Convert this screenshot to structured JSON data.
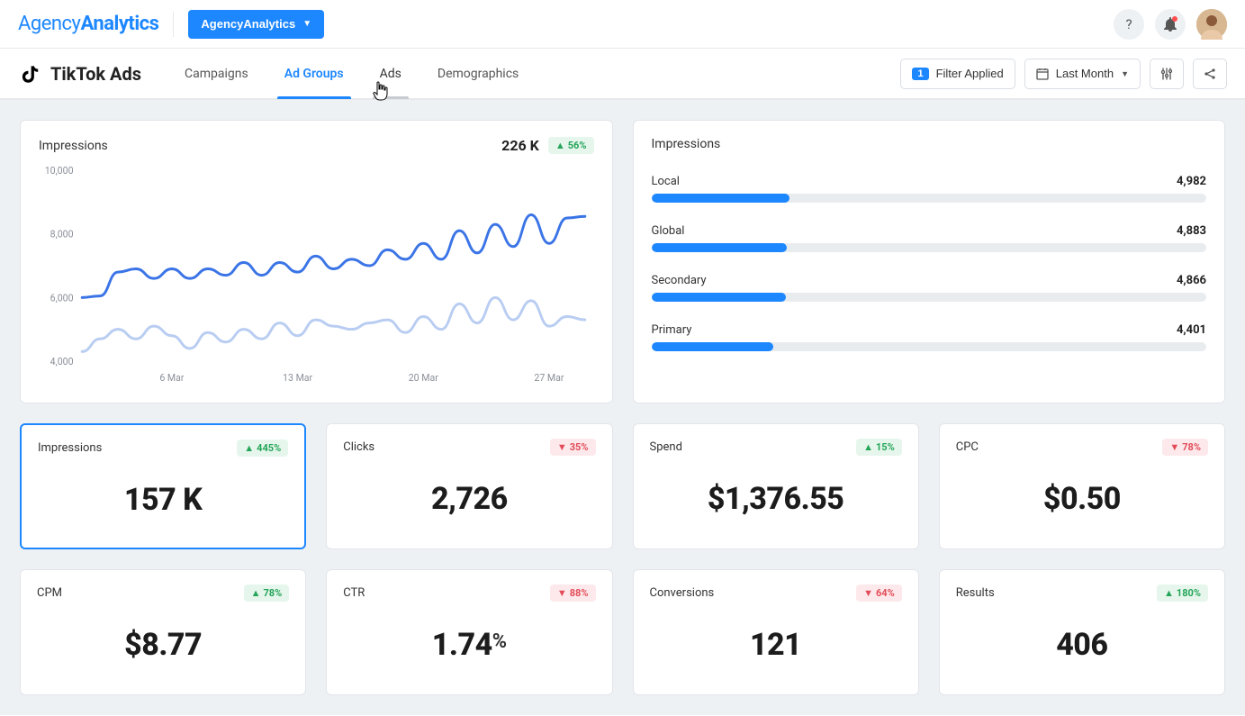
{
  "header": {
    "logo_light": "Agency",
    "logo_bold": "Analytics",
    "workspace_label": "AgencyAnalytics"
  },
  "subheader": {
    "page_title": "TikTok Ads",
    "tabs": {
      "campaigns": "Campaigns",
      "adgroups": "Ad Groups",
      "ads": "Ads",
      "demographics": "Demographics"
    },
    "filter_count": "1",
    "filter_label": "Filter Applied",
    "date_label": "Last Month"
  },
  "impressions_chart": {
    "title": "Impressions",
    "total": "226 K",
    "delta": "56%",
    "delta_dir": "up",
    "y_ticks": [
      "10,000",
      "8,000",
      "6,000",
      "4,000"
    ],
    "x_ticks": [
      "6 Mar",
      "13 Mar",
      "20 Mar",
      "27 Mar"
    ],
    "colors": {
      "series1": "#3b74e6",
      "series2": "#b9cdf2"
    },
    "series1": [
      6000,
      6050,
      6800,
      6900,
      6600,
      6900,
      6600,
      6900,
      6700,
      7100,
      6700,
      7100,
      6800,
      7300,
      6900,
      7200,
      7000,
      7500,
      7200,
      7700,
      7200,
      8100,
      7400,
      8300,
      7600,
      8600,
      7700,
      8500,
      8550
    ],
    "series2": [
      4300,
      4700,
      5000,
      4700,
      5100,
      4800,
      4400,
      4900,
      4600,
      5000,
      4700,
      5200,
      4800,
      5300,
      5100,
      5000,
      5200,
      5300,
      4900,
      5400,
      5000,
      5800,
      5200,
      6000,
      5300,
      5900,
      5100,
      5400,
      5300
    ],
    "ylim": [
      4000,
      10000
    ]
  },
  "impressions_bars": {
    "title": "Impressions",
    "max": 20000,
    "items": [
      {
        "name": "Local",
        "value_text": "4,982",
        "value": 4982
      },
      {
        "name": "Global",
        "value_text": "4,883",
        "value": 4883
      },
      {
        "name": "Secondary",
        "value_text": "4,866",
        "value": 4866
      },
      {
        "name": "Primary",
        "value_text": "4,401",
        "value": 4401
      }
    ]
  },
  "metrics": [
    {
      "key": "impressions",
      "label": "Impressions",
      "value": "157 K",
      "delta": "445%",
      "dir": "up",
      "selected": true
    },
    {
      "key": "clicks",
      "label": "Clicks",
      "value": "2,726",
      "delta": "35%",
      "dir": "down"
    },
    {
      "key": "spend",
      "label": "Spend",
      "value": "$1,376.55",
      "delta": "15%",
      "dir": "up"
    },
    {
      "key": "cpc",
      "label": "CPC",
      "value": "$0.50",
      "delta": "78%",
      "dir": "down"
    },
    {
      "key": "cpm",
      "label": "CPM",
      "value": "$8.77",
      "delta": "78%",
      "dir": "up"
    },
    {
      "key": "ctr",
      "label": "CTR",
      "value": "1.74",
      "suffix": "%",
      "delta": "88%",
      "dir": "down"
    },
    {
      "key": "conversions",
      "label": "Conversions",
      "value": "121",
      "delta": "64%",
      "dir": "down"
    },
    {
      "key": "results",
      "label": "Results",
      "value": "406",
      "delta": "180%",
      "dir": "up"
    }
  ]
}
